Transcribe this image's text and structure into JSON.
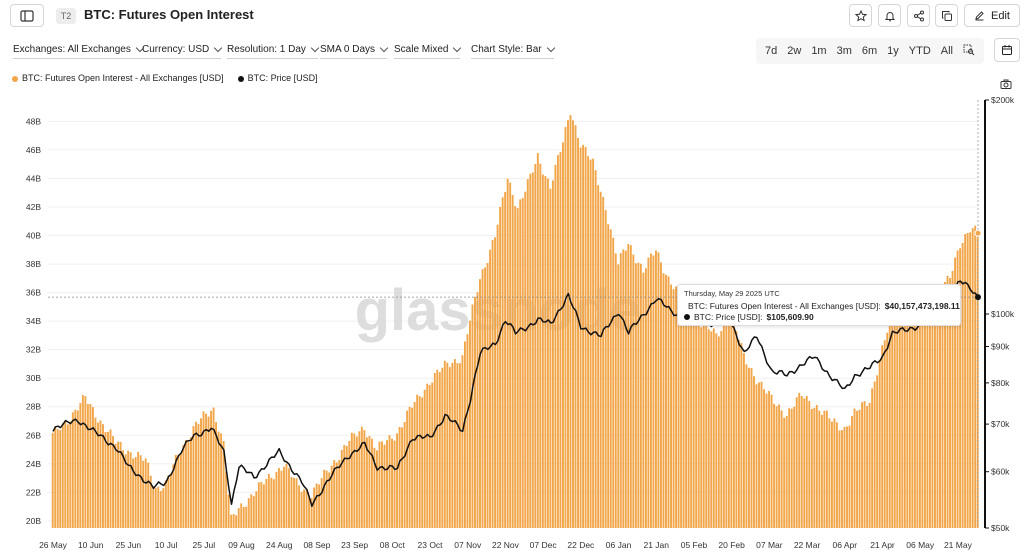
{
  "header": {
    "tag": "T2",
    "title": "BTC: Futures Open Interest",
    "edit_label": "Edit",
    "icons": [
      "sidebar-toggle-icon",
      "star-icon",
      "bell-icon",
      "share-icon",
      "copy-icon",
      "pencil-icon"
    ]
  },
  "toolbar": {
    "exchanges": "Exchanges: All Exchanges",
    "currency": "Currency: USD",
    "resolution": "Resolution: 1 Day",
    "sma": "SMA 0 Days",
    "scale": "Scale Mixed",
    "chart_style": "Chart Style: Bar",
    "ranges": [
      "7d",
      "2w",
      "1m",
      "3m",
      "6m",
      "1y",
      "YTD",
      "All"
    ]
  },
  "legend": {
    "series1": "BTC: Futures Open Interest - All Exchanges [USD]",
    "series2": "BTC: Price [USD]"
  },
  "tooltip": {
    "date": "Thursday, May 29 2025 UTC",
    "oi_label": "BTC: Futures Open Interest - All Exchanges [USD]:",
    "oi_value": "$40,157,473,198.11",
    "price_label": "BTC: Price [USD]:",
    "price_value": "$105,609.90"
  },
  "colors": {
    "bar": "#f2a64a",
    "bar_edge": "#ffffff",
    "price_line": "#111111"
  },
  "chart_data": {
    "type": "bar",
    "watermark": "glassnode",
    "grid": true,
    "x_start": "2024-05-26",
    "x_end": "2025-05-29",
    "x_tick_labels": [
      "26 May",
      "10 Jun",
      "25 Jun",
      "10 Jul",
      "25 Jul",
      "09 Aug",
      "24 Aug",
      "08 Sep",
      "23 Sep",
      "08 Oct",
      "23 Oct",
      "07 Nov",
      "22 Nov",
      "07 Dec",
      "22 Dec",
      "06 Jan",
      "21 Jan",
      "05 Feb",
      "20 Feb",
      "07 Mar",
      "22 Mar",
      "06 Apr",
      "21 Apr",
      "06 May",
      "21 May"
    ],
    "left_axis": {
      "scale": "linear",
      "ylim": [
        19.5,
        49.5
      ],
      "tick_labels": [
        "20B",
        "22B",
        "24B",
        "26B",
        "28B",
        "30B",
        "32B",
        "34B",
        "36B",
        "38B",
        "40B",
        "42B",
        "44B",
        "46B",
        "48B"
      ]
    },
    "right_axis": {
      "scale": "log",
      "ylim": [
        50000,
        200000
      ],
      "tick_labels": [
        "$50k",
        "$60k",
        "$70k",
        "$80k",
        "$90k",
        "$100k",
        "$200k"
      ]
    },
    "series": [
      {
        "name": "BTC: Futures Open Interest - All Exchanges [USD]",
        "axis": "left",
        "unit": "B",
        "keyframes": [
          [
            "2024-05-26",
            26.0
          ],
          [
            "2024-06-03",
            27.5
          ],
          [
            "2024-06-08",
            28.6
          ],
          [
            "2024-06-14",
            27.0
          ],
          [
            "2024-06-20",
            25.5
          ],
          [
            "2024-06-26",
            24.8
          ],
          [
            "2024-07-02",
            24.2
          ],
          [
            "2024-07-06",
            22.3
          ],
          [
            "2024-07-10",
            22.6
          ],
          [
            "2024-07-16",
            25.0
          ],
          [
            "2024-07-22",
            26.8
          ],
          [
            "2024-07-29",
            27.8
          ],
          [
            "2024-08-02",
            25.5
          ],
          [
            "2024-08-05",
            20.0
          ],
          [
            "2024-08-08",
            20.8
          ],
          [
            "2024-08-14",
            22.0
          ],
          [
            "2024-08-22",
            23.3
          ],
          [
            "2024-08-26",
            24.0
          ],
          [
            "2024-08-31",
            22.6
          ],
          [
            "2024-09-06",
            21.9
          ],
          [
            "2024-09-12",
            23.4
          ],
          [
            "2024-09-20",
            25.4
          ],
          [
            "2024-09-27",
            26.6
          ],
          [
            "2024-10-02",
            25.0
          ],
          [
            "2024-10-10",
            26.2
          ],
          [
            "2024-10-16",
            28.0
          ],
          [
            "2024-10-23",
            29.8
          ],
          [
            "2024-10-30",
            31.0
          ],
          [
            "2024-11-05",
            31.5
          ],
          [
            "2024-11-08",
            34.0
          ],
          [
            "2024-11-12",
            37.0
          ],
          [
            "2024-11-18",
            40.0
          ],
          [
            "2024-11-23",
            44.0
          ],
          [
            "2024-11-27",
            42.0
          ],
          [
            "2024-12-02",
            44.0
          ],
          [
            "2024-12-05",
            45.5
          ],
          [
            "2024-12-10",
            43.5
          ],
          [
            "2024-12-15",
            46.5
          ],
          [
            "2024-12-18",
            48.8
          ],
          [
            "2024-12-22",
            46.5
          ],
          [
            "2024-12-27",
            45.0
          ],
          [
            "2025-01-01",
            42.0
          ],
          [
            "2025-01-06",
            38.0
          ],
          [
            "2025-01-10",
            39.5
          ],
          [
            "2025-01-16",
            37.5
          ],
          [
            "2025-01-21",
            39.0
          ],
          [
            "2025-01-26",
            37.0
          ],
          [
            "2025-02-02",
            35.0
          ],
          [
            "2025-02-07",
            34.0
          ],
          [
            "2025-02-14",
            33.0
          ],
          [
            "2025-02-20",
            34.5
          ],
          [
            "2025-02-25",
            31.5
          ],
          [
            "2025-03-02",
            30.0
          ],
          [
            "2025-03-08",
            28.5
          ],
          [
            "2025-03-14",
            27.5
          ],
          [
            "2025-03-20",
            28.8
          ],
          [
            "2025-03-26",
            28.0
          ],
          [
            "2025-04-01",
            27.0
          ],
          [
            "2025-04-06",
            26.5
          ],
          [
            "2025-04-10",
            27.5
          ],
          [
            "2025-04-16",
            28.5
          ],
          [
            "2025-04-21",
            32.0
          ],
          [
            "2025-04-25",
            34.5
          ],
          [
            "2025-05-01",
            34.0
          ],
          [
            "2025-05-07",
            34.5
          ],
          [
            "2025-05-13",
            35.8
          ],
          [
            "2025-05-18",
            37.0
          ],
          [
            "2025-05-22",
            39.5
          ],
          [
            "2025-05-26",
            40.5
          ],
          [
            "2025-05-29",
            40.16
          ]
        ]
      },
      {
        "name": "BTC: Price [USD]",
        "axis": "right",
        "unit": "USD",
        "keyframes": [
          [
            "2024-05-26",
            69000
          ],
          [
            "2024-06-05",
            71000
          ],
          [
            "2024-06-12",
            68000
          ],
          [
            "2024-06-20",
            65000
          ],
          [
            "2024-06-25",
            61000
          ],
          [
            "2024-07-05",
            57000
          ],
          [
            "2024-07-10",
            58000
          ],
          [
            "2024-07-16",
            64000
          ],
          [
            "2024-07-21",
            67500
          ],
          [
            "2024-07-28",
            69000
          ],
          [
            "2024-08-02",
            64000
          ],
          [
            "2024-08-05",
            54000
          ],
          [
            "2024-08-08",
            61000
          ],
          [
            "2024-08-14",
            59000
          ],
          [
            "2024-08-24",
            64000
          ],
          [
            "2024-09-02",
            58000
          ],
          [
            "2024-09-06",
            54000
          ],
          [
            "2024-09-12",
            58000
          ],
          [
            "2024-09-20",
            63000
          ],
          [
            "2024-09-27",
            65500
          ],
          [
            "2024-10-02",
            61000
          ],
          [
            "2024-10-10",
            60500
          ],
          [
            "2024-10-16",
            67000
          ],
          [
            "2024-10-23",
            67000
          ],
          [
            "2024-10-29",
            72000
          ],
          [
            "2024-11-05",
            68500
          ],
          [
            "2024-11-08",
            76000
          ],
          [
            "2024-11-12",
            88000
          ],
          [
            "2024-11-18",
            91000
          ],
          [
            "2024-11-22",
            98000
          ],
          [
            "2024-11-26",
            94000
          ],
          [
            "2024-12-05",
            98000
          ],
          [
            "2024-12-10",
            97000
          ],
          [
            "2024-12-17",
            106000
          ],
          [
            "2024-12-22",
            96000
          ],
          [
            "2024-12-30",
            93000
          ],
          [
            "2025-01-06",
            101000
          ],
          [
            "2025-01-10",
            94000
          ],
          [
            "2025-01-16",
            100000
          ],
          [
            "2025-01-21",
            105000
          ],
          [
            "2025-01-27",
            101000
          ],
          [
            "2025-02-03",
            98000
          ],
          [
            "2025-02-10",
            97000
          ],
          [
            "2025-02-20",
            97000
          ],
          [
            "2025-02-25",
            88000
          ],
          [
            "2025-03-02",
            93000
          ],
          [
            "2025-03-08",
            83000
          ],
          [
            "2025-03-14",
            82000
          ],
          [
            "2025-03-20",
            85000
          ],
          [
            "2025-03-25",
            87000
          ],
          [
            "2025-03-31",
            82000
          ],
          [
            "2025-04-06",
            78000
          ],
          [
            "2025-04-10",
            82000
          ],
          [
            "2025-04-16",
            84000
          ],
          [
            "2025-04-21",
            87000
          ],
          [
            "2025-04-25",
            94000
          ],
          [
            "2025-05-01",
            95000
          ],
          [
            "2025-05-07",
            97000
          ],
          [
            "2025-05-10",
            103000
          ],
          [
            "2025-05-16",
            103500
          ],
          [
            "2025-05-22",
            111000
          ],
          [
            "2025-05-26",
            109000
          ],
          [
            "2025-05-29",
            105609.9
          ]
        ]
      }
    ]
  }
}
